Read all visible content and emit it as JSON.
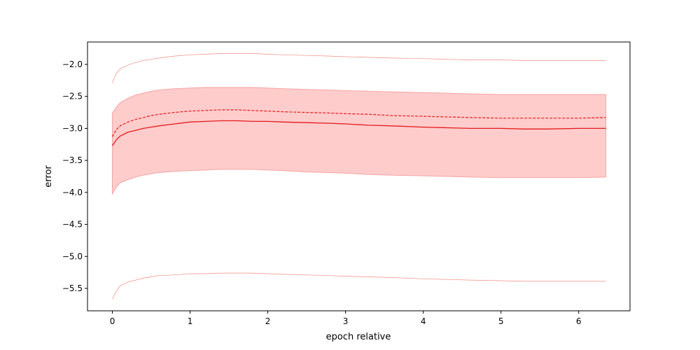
{
  "chart_data": {
    "type": "line",
    "title": "",
    "xlabel": "epoch relative",
    "ylabel": "error",
    "xlim": [
      -0.32,
      6.66
    ],
    "ylim": [
      -5.85,
      -1.65
    ],
    "xticks": [
      0,
      1,
      2,
      3,
      4,
      5,
      6
    ],
    "yticks": [
      -2.0,
      -2.5,
      -3.0,
      -3.5,
      -4.0,
      -4.5,
      -5.0,
      -5.5
    ],
    "grid": false,
    "legend": "none",
    "colors": {
      "line": "#e31a1c",
      "band": "#ffcccc",
      "band_edge": "#f6a3a3",
      "extreme": "#f28b82"
    },
    "series": [
      {
        "role": "mean",
        "style": "solid",
        "x": [
          0,
          0.05,
          0.1,
          0.2,
          0.3,
          0.4,
          0.5,
          0.6,
          0.8,
          1.0,
          1.2,
          1.4,
          1.6,
          1.8,
          2.0,
          2.2,
          2.5,
          2.8,
          3.0,
          3.3,
          3.6,
          4.0,
          4.3,
          4.6,
          5.0,
          5.3,
          5.6,
          6.0,
          6.35
        ],
        "y": [
          -3.27,
          -3.18,
          -3.12,
          -3.06,
          -3.03,
          -3.0,
          -2.98,
          -2.96,
          -2.93,
          -2.9,
          -2.89,
          -2.88,
          -2.88,
          -2.89,
          -2.89,
          -2.9,
          -2.91,
          -2.92,
          -2.93,
          -2.95,
          -2.96,
          -2.98,
          -2.99,
          -3.0,
          -3.0,
          -3.01,
          -3.01,
          -3.0,
          -3.0
        ]
      },
      {
        "role": "median",
        "style": "dashed",
        "x": [
          0,
          0.05,
          0.1,
          0.2,
          0.3,
          0.4,
          0.5,
          0.6,
          0.8,
          1.0,
          1.2,
          1.4,
          1.6,
          1.8,
          2.0,
          2.2,
          2.5,
          2.8,
          3.0,
          3.3,
          3.6,
          4.0,
          4.3,
          4.6,
          5.0,
          5.3,
          5.6,
          6.0,
          6.35
        ],
        "y": [
          -3.13,
          -3.02,
          -2.96,
          -2.9,
          -2.86,
          -2.83,
          -2.8,
          -2.78,
          -2.75,
          -2.73,
          -2.72,
          -2.71,
          -2.71,
          -2.72,
          -2.73,
          -2.74,
          -2.75,
          -2.76,
          -2.77,
          -2.78,
          -2.8,
          -2.81,
          -2.82,
          -2.83,
          -2.84,
          -2.84,
          -2.84,
          -2.84,
          -2.83
        ]
      },
      {
        "role": "band",
        "style": "fill",
        "x": [
          0,
          0.05,
          0.1,
          0.2,
          0.3,
          0.4,
          0.5,
          0.6,
          0.8,
          1.0,
          1.2,
          1.4,
          1.6,
          1.8,
          2.0,
          2.2,
          2.5,
          2.8,
          3.0,
          3.3,
          3.6,
          4.0,
          4.3,
          4.6,
          5.0,
          5.3,
          5.6,
          6.0,
          6.35
        ],
        "upper": [
          -2.76,
          -2.67,
          -2.6,
          -2.53,
          -2.48,
          -2.45,
          -2.42,
          -2.4,
          -2.38,
          -2.37,
          -2.36,
          -2.36,
          -2.36,
          -2.36,
          -2.37,
          -2.38,
          -2.39,
          -2.4,
          -2.41,
          -2.42,
          -2.43,
          -2.44,
          -2.45,
          -2.46,
          -2.47,
          -2.47,
          -2.47,
          -2.47,
          -2.47
        ],
        "lower": [
          -4.02,
          -3.92,
          -3.85,
          -3.8,
          -3.76,
          -3.73,
          -3.71,
          -3.69,
          -3.67,
          -3.66,
          -3.65,
          -3.64,
          -3.64,
          -3.64,
          -3.65,
          -3.66,
          -3.68,
          -3.69,
          -3.7,
          -3.72,
          -3.73,
          -3.74,
          -3.75,
          -3.76,
          -3.77,
          -3.77,
          -3.77,
          -3.77,
          -3.76
        ]
      },
      {
        "role": "max",
        "style": "thin",
        "x": [
          0,
          0.05,
          0.1,
          0.2,
          0.3,
          0.4,
          0.5,
          0.6,
          0.8,
          1.0,
          1.2,
          1.4,
          1.6,
          1.8,
          2.0,
          2.2,
          2.5,
          2.8,
          3.0,
          3.3,
          3.6,
          4.0,
          4.3,
          4.6,
          5.0,
          5.3,
          5.6,
          6.0,
          6.35
        ],
        "y": [
          -2.29,
          -2.14,
          -2.07,
          -2.01,
          -1.97,
          -1.94,
          -1.92,
          -1.9,
          -1.87,
          -1.85,
          -1.84,
          -1.83,
          -1.83,
          -1.83,
          -1.84,
          -1.85,
          -1.86,
          -1.87,
          -1.88,
          -1.89,
          -1.9,
          -1.91,
          -1.92,
          -1.93,
          -1.93,
          -1.94,
          -1.94,
          -1.94,
          -1.94
        ]
      },
      {
        "role": "min",
        "style": "thin",
        "x": [
          0,
          0.05,
          0.1,
          0.2,
          0.3,
          0.4,
          0.5,
          0.6,
          0.8,
          1.0,
          1.2,
          1.4,
          1.6,
          1.8,
          2.0,
          2.2,
          2.5,
          2.8,
          3.0,
          3.3,
          3.6,
          4.0,
          4.3,
          4.6,
          5.0,
          5.3,
          5.6,
          6.0,
          6.35
        ],
        "y": [
          -5.67,
          -5.55,
          -5.46,
          -5.4,
          -5.37,
          -5.34,
          -5.32,
          -5.3,
          -5.29,
          -5.27,
          -5.27,
          -5.26,
          -5.26,
          -5.26,
          -5.27,
          -5.28,
          -5.29,
          -5.3,
          -5.31,
          -5.32,
          -5.33,
          -5.35,
          -5.36,
          -5.37,
          -5.38,
          -5.39,
          -5.39,
          -5.39,
          -5.39
        ]
      }
    ]
  }
}
